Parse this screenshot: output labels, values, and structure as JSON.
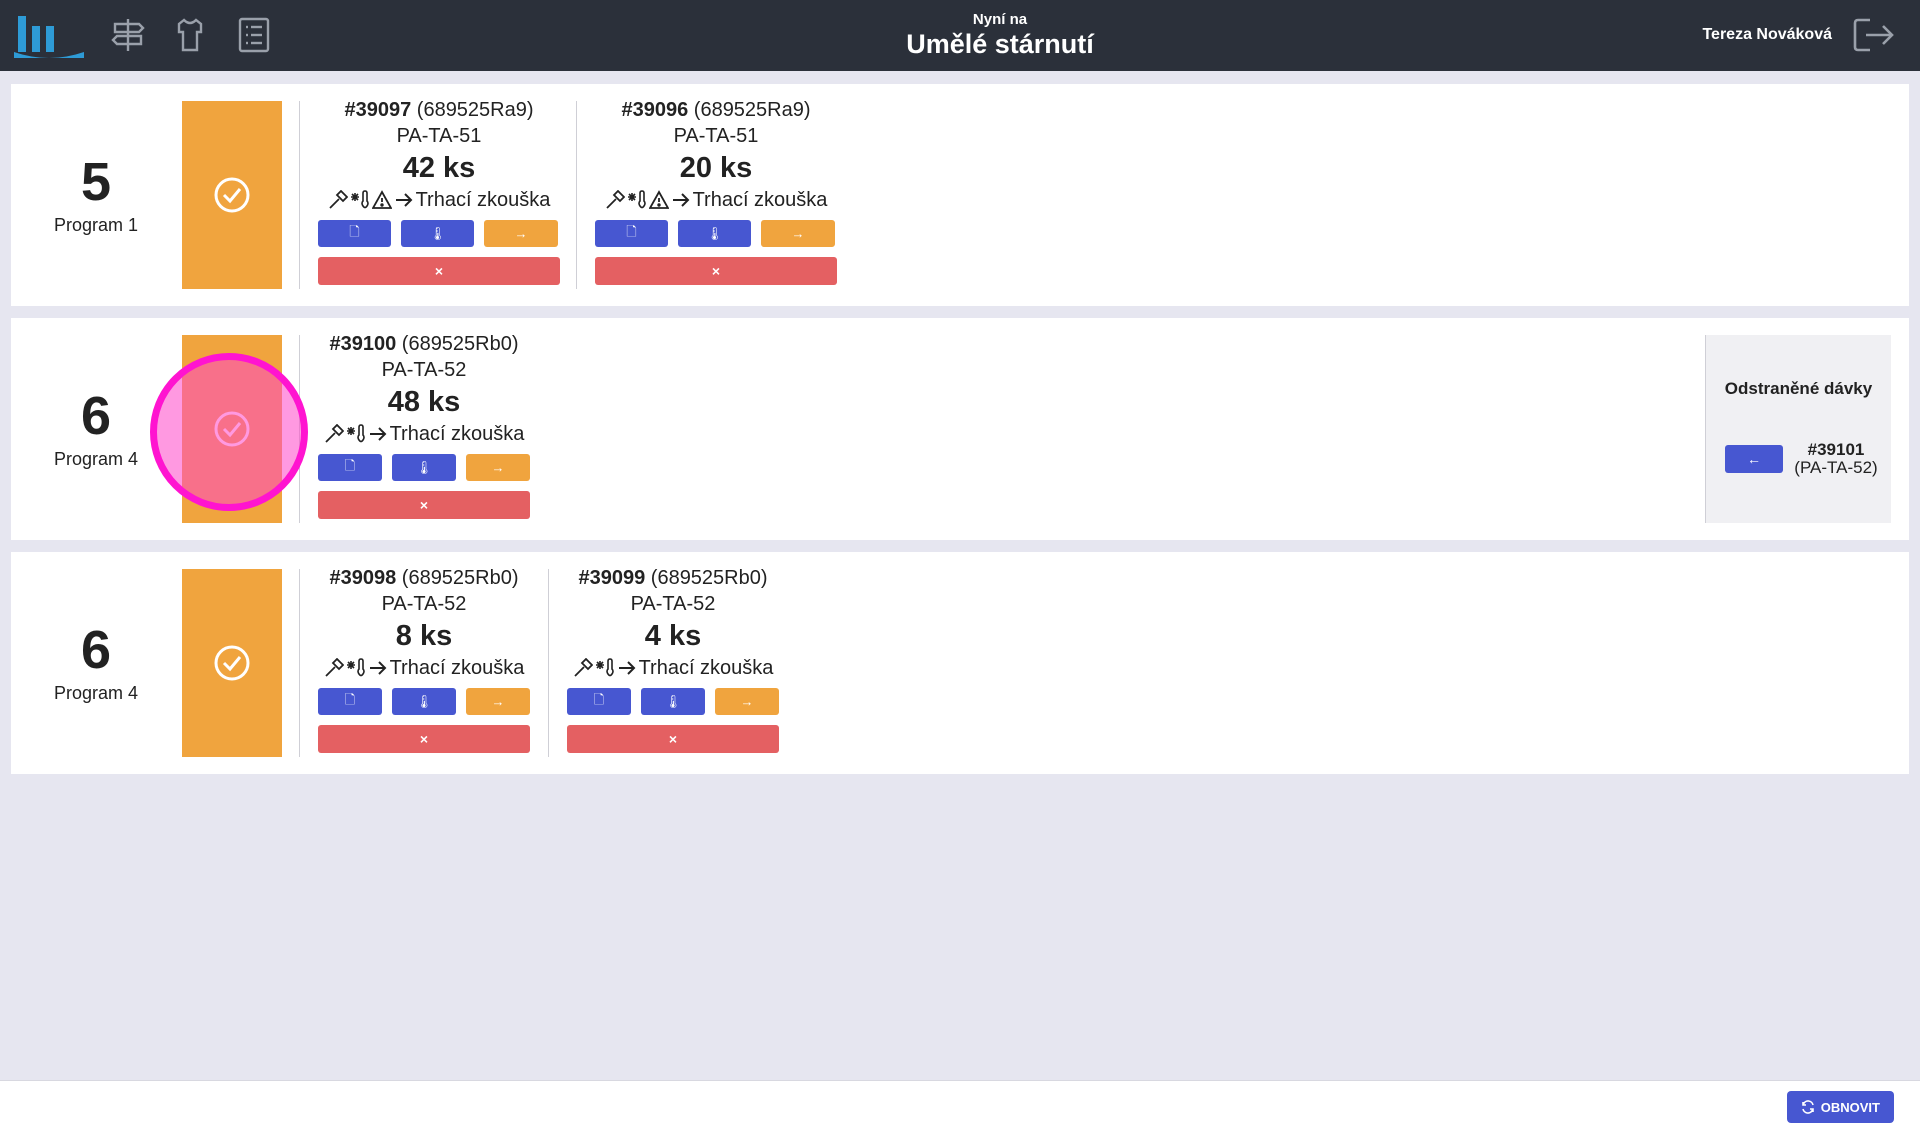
{
  "header": {
    "subtitle": "Nyní na",
    "title": "Umělé stárnutí",
    "user": "Tereza Nováková"
  },
  "rows": [
    {
      "program_number": "5",
      "program_name": "Program 1",
      "batches": [
        {
          "id": "#39097",
          "ref": "(689525Ra9)",
          "code": "PA-TA-51",
          "qty": "42 ks",
          "next": "Trhací zkouška",
          "warning": true
        },
        {
          "id": "#39096",
          "ref": "(689525Ra9)",
          "code": "PA-TA-51",
          "qty": "20 ks",
          "next": "Trhací zkouška",
          "warning": true
        }
      ]
    },
    {
      "program_number": "6",
      "program_name": "Program 4",
      "batches": [
        {
          "id": "#39100",
          "ref": "(689525Rb0)",
          "code": "PA-TA-52",
          "qty": "48 ks",
          "next": "Trhací zkouška",
          "warning": false
        }
      ],
      "removed": {
        "title": "Odstraněné dávky",
        "items": [
          {
            "id": "#39101",
            "code": "(PA-TA-52)"
          }
        ]
      }
    },
    {
      "program_number": "6",
      "program_name": "Program 4",
      "batches": [
        {
          "id": "#39098",
          "ref": "(689525Rb0)",
          "code": "PA-TA-52",
          "qty": "8 ks",
          "next": "Trhací zkouška",
          "warning": false
        },
        {
          "id": "#39099",
          "ref": "(689525Rb0)",
          "code": "PA-TA-52",
          "qty": "4 ks",
          "next": "Trhací zkouška",
          "warning": false
        }
      ]
    }
  ],
  "footer": {
    "refresh_label": "OBNOVIT"
  },
  "colors": {
    "header_bg": "#2b303a",
    "accent_blue": "#4757d1",
    "status_orange": "#f0a43e",
    "danger_red": "#e46062",
    "logo_blue": "#2e9bd6"
  }
}
